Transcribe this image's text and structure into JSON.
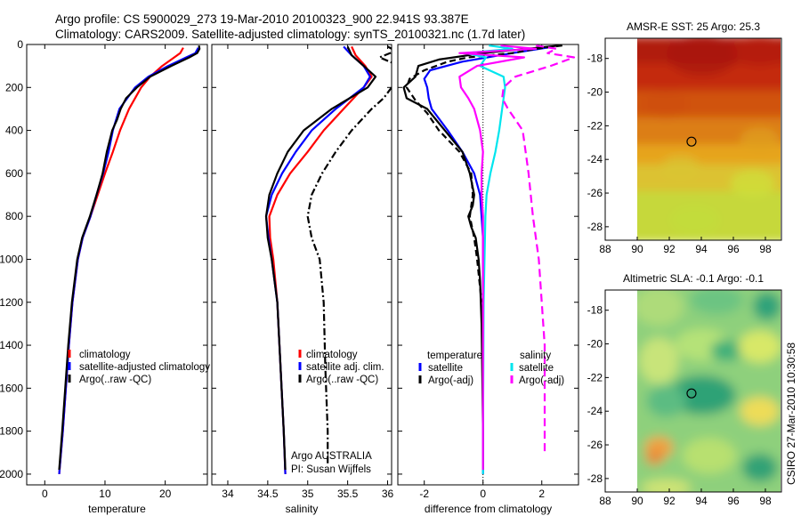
{
  "header": {
    "line1": "Argo profile: CS 5900029_273 19-Mar-2010 20100323_900 22.941S 93.387E",
    "line2": "Climatology: CARS2009. Satellite-adjusted climatology: synTS_20100321.nc (1.7d later)"
  },
  "side_credit": "CSIRO 27-Mar-2010 10:30:58",
  "colors": {
    "climatology": "#ff0000",
    "satellite": "#0000ff",
    "argo": "#000000",
    "sal_satellite": "#00e5ee",
    "sal_argo": "#ff00ff"
  },
  "chart_data": [
    {
      "id": "temperature",
      "type": "line",
      "xlabel": "temperature",
      "ylabel": "",
      "xlim": [
        -3,
        27
      ],
      "ylim": [
        2050,
        0
      ],
      "xticks": [
        "0",
        "10",
        "20"
      ],
      "yticks": [
        "0",
        "200",
        "400",
        "600",
        "800",
        "1000",
        "1200",
        "1400",
        "1600",
        "1800",
        "2000"
      ],
      "legend": [
        "climatology",
        "satellite-adjusted climatology",
        "Argo(..raw -QC)"
      ],
      "series": [
        {
          "name": "climatology",
          "color": "#ff0000",
          "dash": "",
          "y": [
            15,
            40,
            60,
            100,
            150,
            200,
            300,
            400,
            500,
            600,
            700,
            800,
            900,
            1000,
            1200,
            1400,
            1600,
            1800,
            2000
          ],
          "x": [
            23,
            22.5,
            21.5,
            19.5,
            17.5,
            16,
            14,
            12.5,
            11.3,
            10,
            8.8,
            7.6,
            6.3,
            5.5,
            4.6,
            4.0,
            3.5,
            3.0,
            2.4
          ]
        },
        {
          "name": "satellite-adjusted climatology",
          "color": "#0000ff",
          "dash": "",
          "y": [
            15,
            40,
            60,
            100,
            150,
            200,
            300,
            400,
            500,
            600,
            700,
            800,
            900,
            1000,
            1200,
            1400,
            1600,
            1800,
            2000
          ],
          "x": [
            25.5,
            25,
            23.5,
            20.5,
            17.2,
            15,
            12.4,
            11.3,
            10.6,
            9.7,
            8.6,
            7.6,
            6.3,
            5.5,
            4.6,
            4.0,
            3.5,
            3.0,
            2.4
          ]
        },
        {
          "name": "Argo(..raw -QC)",
          "color": "#000000",
          "dash": "",
          "y": [
            5,
            20,
            40,
            60,
            100,
            150,
            200,
            250,
            300,
            350,
            400,
            500,
            600,
            700,
            800,
            900,
            1000,
            1200,
            1400,
            1600,
            1800,
            1980
          ],
          "x": [
            25.6,
            25.7,
            25.3,
            24,
            21,
            17.5,
            15.3,
            13.5,
            12.6,
            12.0,
            11.2,
            10.3,
            9.6,
            8.6,
            7.5,
            6.2,
            5.4,
            4.5,
            3.9,
            3.4,
            2.9,
            2.4
          ]
        }
      ]
    },
    {
      "id": "salinity",
      "type": "line",
      "xlabel": "salinity",
      "ylabel": "",
      "xlim": [
        33.8,
        36.05
      ],
      "ylim": [
        2050,
        0
      ],
      "xticks": [
        "34",
        "34.5",
        "35",
        "35.5",
        "36"
      ],
      "legend": [
        "climatology",
        "satellite adj. clim.",
        "Argo(..raw -QC)"
      ],
      "annotation": [
        "Argo AUSTRALIA",
        "PI: Susan Wijffels"
      ],
      "series": [
        {
          "name": "climatology",
          "color": "#ff0000",
          "dash": "",
          "y": [
            10,
            50,
            100,
            150,
            200,
            300,
            400,
            500,
            600,
            700,
            800,
            900,
            1000,
            1200,
            1500,
            1800,
            2000
          ],
          "x": [
            35.55,
            35.6,
            35.72,
            35.8,
            35.7,
            35.45,
            35.2,
            35.0,
            34.78,
            34.62,
            34.52,
            34.53,
            34.57,
            34.62,
            34.66,
            34.7,
            34.72
          ]
        },
        {
          "name": "satellite adj. clim.",
          "color": "#0000ff",
          "dash": "",
          "y": [
            10,
            50,
            100,
            150,
            200,
            300,
            400,
            500,
            600,
            700,
            800,
            900,
            1000,
            1200,
            1500,
            1800,
            2000
          ],
          "x": [
            35.45,
            35.55,
            35.7,
            35.78,
            35.7,
            35.35,
            35.05,
            34.85,
            34.68,
            34.55,
            34.48,
            34.51,
            34.55,
            34.62,
            34.66,
            34.7,
            34.72
          ]
        },
        {
          "name": "Argo(..raw -QC)",
          "color": "#000000",
          "dash": "",
          "y": [
            10,
            50,
            100,
            150,
            200,
            300,
            400,
            500,
            600,
            700,
            800,
            900,
            1000,
            1200,
            1500,
            1800,
            1980
          ],
          "x": [
            35.5,
            35.55,
            35.7,
            35.85,
            35.75,
            35.3,
            34.95,
            34.75,
            34.62,
            34.52,
            34.48,
            34.5,
            34.55,
            34.62,
            34.66,
            34.7,
            34.72
          ]
        },
        {
          "name": "",
          "color": "#000000",
          "dash": "8 3 2 3",
          "y": [
            10,
            30,
            60,
            100,
            150,
            200,
            250,
            300,
            400,
            500,
            600,
            700,
            800,
            900,
            1000,
            1200,
            1500,
            1800,
            1950
          ],
          "x": [
            36.0,
            36.1,
            35.9,
            36.15,
            36.1,
            36.05,
            35.95,
            35.8,
            35.55,
            35.35,
            35.18,
            35.05,
            35.0,
            35.05,
            35.15,
            35.2,
            35.22,
            35.25,
            35.25
          ]
        }
      ]
    },
    {
      "id": "difference",
      "type": "line",
      "xlabel": "difference from climatology",
      "ylabel": "",
      "xlim": [
        -2.9,
        3.25
      ],
      "ylim": [
        2050,
        0
      ],
      "xticks": [
        "-2",
        "0",
        "2"
      ],
      "legend_temperature": {
        "title": "temperature",
        "items": [
          "satellite",
          "Argo(-adj)"
        ]
      },
      "legend_salinity": {
        "title": "salinity",
        "items": [
          "satellite",
          "Argo(-adj)"
        ]
      },
      "series": [
        {
          "name": "temperature satellite",
          "color": "#0000ff",
          "dash": "",
          "y": [
            10,
            40,
            80,
            120,
            160,
            200,
            250,
            300,
            400,
            500,
            600,
            700,
            800,
            900,
            1000,
            1200,
            1500,
            1800,
            2000
          ],
          "x": [
            2.4,
            1.0,
            -0.7,
            -1.8,
            -2.0,
            -1.9,
            -1.85,
            -1.75,
            -1.2,
            -0.7,
            -0.3,
            -0.1,
            -0.05,
            0,
            0,
            0,
            0,
            0,
            0
          ]
        },
        {
          "name": "temperature Argo(-adj)",
          "color": "#000000",
          "dash": "",
          "y": [
            5,
            20,
            40,
            70,
            100,
            150,
            200,
            250,
            300,
            350,
            400,
            450,
            500,
            600,
            700,
            750,
            800,
            850,
            900,
            1000,
            1100,
            1300,
            1600,
            1800,
            1980
          ],
          "x": [
            2.6,
            1.5,
            0,
            -1.5,
            -2.2,
            -2.3,
            -2.7,
            -2.6,
            -1.9,
            -1.6,
            -1.3,
            -1.0,
            -0.7,
            -0.45,
            -0.3,
            -0.35,
            -0.5,
            -0.4,
            -0.25,
            -0.15,
            -0.1,
            -0.05,
            -0.02,
            0,
            0
          ]
        },
        {
          "name": "temperature Argo(-adj) dashed",
          "color": "#000000",
          "dash": "7 4",
          "y": [
            5,
            20,
            40,
            60,
            80,
            120,
            160,
            200,
            260,
            320,
            400,
            500,
            600,
            700,
            800,
            900,
            1000,
            1200
          ],
          "x": [
            2.7,
            1.8,
            1.0,
            -0.5,
            -1.2,
            -2.0,
            -2.5,
            -2.6,
            -2.3,
            -1.9,
            -1.5,
            -0.8,
            -0.4,
            -0.35,
            -0.45,
            -0.3,
            -0.2,
            -0.05
          ]
        },
        {
          "name": "salinity satellite",
          "color": "#00e5ee",
          "dash": "",
          "y": [
            5,
            20,
            40,
            60,
            100,
            150,
            200,
            300,
            400,
            500,
            600,
            700,
            800,
            1000,
            1200,
            1500,
            1800,
            2000
          ],
          "x": [
            0.2,
            1.0,
            -0.6,
            0.1,
            -0.1,
            0.7,
            0.75,
            0.65,
            0.55,
            0.42,
            0.25,
            0.12,
            0.08,
            0.05,
            0.02,
            0.01,
            0,
            0
          ]
        },
        {
          "name": "salinity Argo(-adj)",
          "color": "#ff00ff",
          "dash": "",
          "y": [
            5,
            20,
            40,
            60,
            100,
            150,
            200,
            250,
            300,
            400,
            500,
            600,
            700,
            800,
            1000,
            1200,
            1500,
            1800,
            1980
          ],
          "x": [
            0.6,
            1.8,
            -0.8,
            1.4,
            -0.2,
            -0.8,
            -0.75,
            -0.5,
            -0.3,
            -0.1,
            0.0,
            -0.05,
            -0.05,
            0,
            0,
            0,
            0,
            0,
            0
          ]
        },
        {
          "name": "salinity Argo(-adj) dashed",
          "color": "#ff00ff",
          "dash": "9 5",
          "y": [
            5,
            20,
            40,
            60,
            100,
            150,
            200,
            250,
            300,
            400,
            600,
            800,
            1000,
            1200,
            1400,
            1600,
            1800,
            1900
          ],
          "x": [
            1.8,
            2.5,
            2.2,
            3.1,
            2.3,
            1.1,
            0.7,
            0.65,
            0.85,
            1.35,
            1.55,
            1.7,
            1.9,
            2.0,
            2.1,
            2.1,
            2.1,
            2.1
          ]
        }
      ]
    },
    {
      "id": "sst_map",
      "type": "heatmap",
      "title": "AMSR-E SST: 25 Argo: 25.3",
      "xlim": [
        88,
        99
      ],
      "ylim": [
        -28.8,
        -16.8
      ],
      "xticks": [
        "88",
        "90",
        "92",
        "94",
        "96",
        "98"
      ],
      "yticks": [
        "-18",
        "-20",
        "-22",
        "-24",
        "-26",
        "-28"
      ],
      "valid_lon_min": 90,
      "marker": {
        "lon": 93.387,
        "lat": -22.941
      }
    },
    {
      "id": "sla_map",
      "type": "heatmap",
      "title": "Altimetric SLA: -0.1 Argo: -0.1",
      "xlim": [
        88,
        99
      ],
      "ylim": [
        -28.8,
        -16.8
      ],
      "xticks": [
        "88",
        "90",
        "92",
        "94",
        "96",
        "98"
      ],
      "yticks": [
        "-18",
        "-20",
        "-22",
        "-24",
        "-26",
        "-28"
      ],
      "valid_lon_min": 90,
      "marker": {
        "lon": 93.387,
        "lat": -22.941
      }
    }
  ]
}
